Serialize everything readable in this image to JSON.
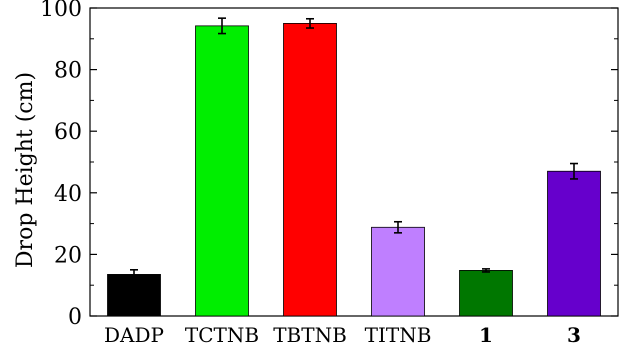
{
  "chart_data": {
    "type": "bar",
    "title": "",
    "xlabel": "",
    "ylabel": "Drop Height (cm)",
    "ylim": [
      0,
      100
    ],
    "yticks": [
      0,
      20,
      40,
      60,
      80,
      100
    ],
    "grid": false,
    "legend": "none",
    "categories": [
      "DADP",
      "TCTNB",
      "TBTNB",
      "TITNB",
      "1",
      "3"
    ],
    "bold_categories": [
      "1",
      "3"
    ],
    "values": [
      13.5,
      94.2,
      95.0,
      28.8,
      14.8,
      47.0
    ],
    "errors": [
      1.5,
      2.5,
      1.5,
      1.8,
      0.5,
      2.5
    ],
    "colors": [
      "#000000",
      "#00ee00",
      "#ff0000",
      "#bf7fff",
      "#007700",
      "#6600cc"
    ]
  }
}
